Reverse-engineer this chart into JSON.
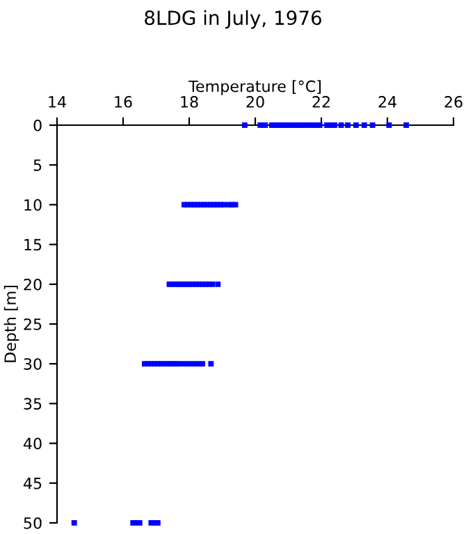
{
  "chart_data": {
    "type": "scatter",
    "title": "8LDG in July, 1976",
    "xlabel": "Temperature [°C]",
    "ylabel": "Depth [m]",
    "series": [
      {
        "color": "#0000ff",
        "x": [
          19.68,
          20.15,
          20.3,
          20.5,
          20.6,
          20.7,
          20.8,
          20.9,
          21.0,
          21.1,
          21.2,
          21.3,
          21.4,
          21.5,
          21.6,
          21.75,
          21.85,
          21.95,
          22.17,
          22.3,
          22.4,
          22.6,
          22.8,
          23.05,
          23.3,
          23.55,
          24.05,
          24.57
        ],
        "values": [
          0,
          0,
          0,
          0,
          0,
          0,
          0,
          0,
          0,
          0,
          0,
          0,
          0,
          0,
          0,
          0,
          0,
          0,
          0,
          0,
          0,
          0,
          0,
          0,
          0,
          0,
          0,
          0
        ]
      },
      {
        "color": "#0000ff",
        "x": [
          17.85,
          17.95,
          18.05,
          18.15,
          18.25,
          18.35,
          18.45,
          18.55,
          18.65,
          18.75,
          18.85,
          18.95,
          19.05,
          19.2,
          19.3,
          19.4
        ],
        "values": [
          10,
          10,
          10,
          10,
          10,
          10,
          10,
          10,
          10,
          10,
          10,
          10,
          10,
          10,
          10,
          10
        ]
      },
      {
        "color": "#0000ff",
        "x": [
          17.4,
          17.5,
          17.6,
          17.7,
          17.8,
          17.9,
          18.0,
          18.1,
          18.2,
          18.3,
          18.4,
          18.5,
          18.6,
          18.7,
          18.87
        ],
        "values": [
          20,
          20,
          20,
          20,
          20,
          20,
          20,
          20,
          20,
          20,
          20,
          20,
          20,
          20,
          20
        ]
      },
      {
        "color": "#0000ff",
        "x": [
          16.65,
          16.75,
          16.85,
          16.95,
          17.05,
          17.15,
          17.25,
          17.35,
          17.45,
          17.55,
          17.65,
          17.8,
          17.95,
          18.1,
          18.25,
          18.4,
          18.66
        ],
        "values": [
          30,
          30,
          30,
          30,
          30,
          30,
          30,
          30,
          30,
          30,
          30,
          30,
          30,
          30,
          30,
          30,
          30
        ]
      },
      {
        "color": "#0000ff",
        "x": [
          14.52,
          16.3,
          16.4,
          16.5,
          16.85,
          16.95,
          17.05
        ],
        "values": [
          50,
          50,
          50,
          50,
          50,
          50,
          50
        ]
      }
    ],
    "marker": "square",
    "xlim": [
      14,
      26
    ],
    "xticks": [
      14,
      16,
      18,
      20,
      22,
      24,
      26
    ],
    "ylim": [
      50,
      0
    ],
    "yticks": [
      0,
      5,
      10,
      15,
      20,
      25,
      30,
      35,
      40,
      45,
      50
    ],
    "grid": false,
    "legend": false
  }
}
